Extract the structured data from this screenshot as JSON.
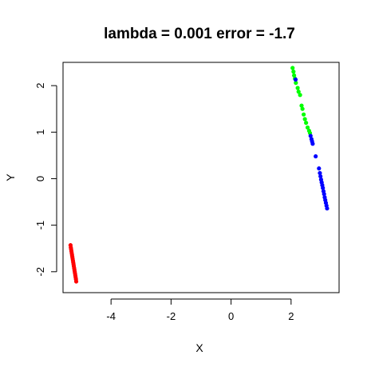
{
  "chart_data": {
    "type": "scatter",
    "title": "lambda = 0.001 error = -1.7",
    "xlabel": "X",
    "ylabel": "Y",
    "xlim": [
      -5.6,
      3.6
    ],
    "ylim": [
      -2.45,
      2.5
    ],
    "xticks": [
      -4,
      -2,
      0,
      2
    ],
    "yticks": [
      -2,
      -1,
      0,
      1,
      2
    ],
    "grid": false,
    "series": [
      {
        "color": "#FF0000",
        "points": [
          [
            -5.35,
            -1.43
          ],
          [
            -5.34,
            -1.48
          ],
          [
            -5.33,
            -1.52
          ],
          [
            -5.32,
            -1.56
          ],
          [
            -5.31,
            -1.6
          ],
          [
            -5.3,
            -1.64
          ],
          [
            -5.29,
            -1.68
          ],
          [
            -5.28,
            -1.72
          ],
          [
            -5.27,
            -1.76
          ],
          [
            -5.26,
            -1.8
          ],
          [
            -5.25,
            -1.84
          ],
          [
            -5.24,
            -1.88
          ],
          [
            -5.23,
            -1.92
          ],
          [
            -5.22,
            -1.96
          ],
          [
            -5.21,
            -2.0
          ],
          [
            -5.2,
            -2.04
          ],
          [
            -5.19,
            -2.08
          ],
          [
            -5.18,
            -2.12
          ],
          [
            -5.17,
            -2.16
          ],
          [
            -5.16,
            -2.21
          ]
        ]
      },
      {
        "color": "#00FF00",
        "points": [
          [
            2.05,
            2.38
          ],
          [
            2.08,
            2.3
          ],
          [
            2.1,
            2.22
          ],
          [
            2.13,
            2.15
          ],
          [
            2.16,
            2.06
          ],
          [
            2.22,
            1.95
          ],
          [
            2.25,
            1.87
          ],
          [
            2.3,
            1.8
          ],
          [
            2.35,
            1.57
          ],
          [
            2.38,
            1.5
          ],
          [
            2.42,
            1.38
          ],
          [
            2.46,
            1.28
          ],
          [
            2.5,
            1.2
          ],
          [
            2.55,
            1.1
          ],
          [
            2.6,
            1.03
          ],
          [
            2.63,
            0.98
          ]
        ]
      },
      {
        "color": "#0000FF",
        "points": [
          [
            2.15,
            2.13
          ],
          [
            2.65,
            0.92
          ],
          [
            2.68,
            0.85
          ],
          [
            2.7,
            0.8
          ],
          [
            2.72,
            0.75
          ],
          [
            2.82,
            0.48
          ],
          [
            2.93,
            0.22
          ],
          [
            2.96,
            0.12
          ],
          [
            2.98,
            0.05
          ],
          [
            3.0,
            -0.02
          ],
          [
            3.02,
            -0.08
          ],
          [
            3.04,
            -0.14
          ],
          [
            3.06,
            -0.2
          ],
          [
            3.08,
            -0.27
          ],
          [
            3.1,
            -0.33
          ],
          [
            3.12,
            -0.4
          ],
          [
            3.14,
            -0.46
          ],
          [
            3.16,
            -0.52
          ],
          [
            3.18,
            -0.58
          ],
          [
            3.2,
            -0.64
          ]
        ]
      }
    ]
  }
}
